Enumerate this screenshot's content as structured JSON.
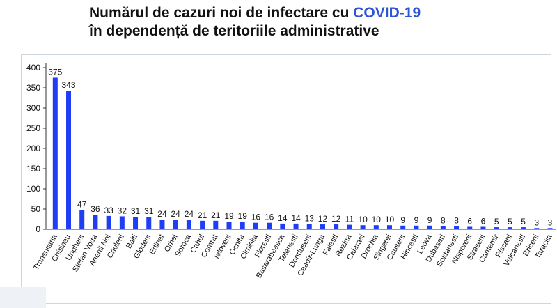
{
  "slide": {
    "title_line1_part1": "Numărul de cazuri noi de infectare cu ",
    "title_line1_accent": "COVID-19",
    "title_line2": "în dependență de teritoriile administrative",
    "accent_color": "#2d55d6"
  },
  "chart_data": {
    "type": "bar",
    "title": "",
    "xlabel": "",
    "ylabel": "",
    "ylim": [
      0,
      400
    ],
    "yticks": [
      0,
      50,
      100,
      150,
      200,
      250,
      300,
      350,
      400
    ],
    "grid": false,
    "legend": "none",
    "bar_color": "#1f3df2",
    "categories": [
      "Transnistria",
      "Chisinau",
      "Ungheni",
      "Stefan Voda",
      "Anenii Noi",
      "Criuleni",
      "Balti",
      "Glodeni",
      "Edinet",
      "Orhei",
      "Soroca",
      "Cahul",
      "Comrat",
      "Ialoveni",
      "Ocnita",
      "Cimislia",
      "Floresti",
      "Basarabeasca",
      "Telenesti",
      "Donduseni",
      "Ceadir-Lunga",
      "Falesti",
      "Rezina",
      "Calarasi",
      "Drochia",
      "Singerei",
      "Causeni",
      "Hincesti",
      "Leova",
      "Dubasari",
      "Soldanesti",
      "Nisporeni",
      "Straseni",
      "Cantemir",
      "Riscani",
      "Vulcanesti",
      "Briceni",
      "Taraclia"
    ],
    "values": [
      375,
      343,
      47,
      36,
      33,
      32,
      31,
      31,
      24,
      24,
      24,
      21,
      21,
      19,
      19,
      16,
      16,
      14,
      14,
      13,
      12,
      12,
      11,
      10,
      10,
      10,
      9,
      9,
      9,
      8,
      8,
      6,
      6,
      5,
      5,
      5,
      3,
      3
    ]
  }
}
